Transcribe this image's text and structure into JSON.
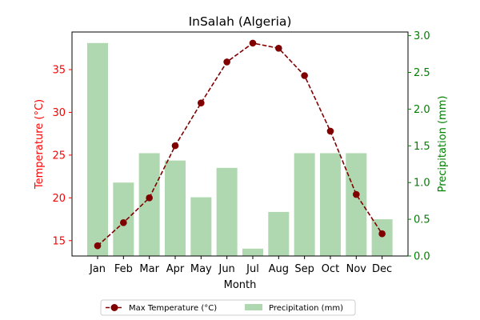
{
  "chart_data": {
    "type": "bar+line",
    "title": "InSalah (Algeria)",
    "xlabel": "Month",
    "ylabel_left": "Temperature (°C)",
    "ylabel_right": "Precipitation (mm)",
    "categories": [
      "Jan",
      "Feb",
      "Mar",
      "Apr",
      "May",
      "Jun",
      "Jul",
      "Aug",
      "Sep",
      "Oct",
      "Nov",
      "Dec"
    ],
    "left_axis": {
      "ylim": [
        13.2,
        39.4
      ],
      "ticks": [
        "15",
        "20",
        "25",
        "30",
        "35"
      ],
      "color": "#ff0000"
    },
    "right_axis": {
      "ylim": [
        0.0,
        3.05
      ],
      "ticks": [
        "0.0",
        "0.5",
        "1.0",
        "1.5",
        "2.0",
        "2.5",
        "3.0"
      ],
      "color": "#008000"
    },
    "series": [
      {
        "name": "Max Temperature (°C)",
        "type": "line",
        "axis": "left",
        "color": "#800000",
        "style": "dashed-with-circle-markers",
        "values": [
          14.4,
          17.1,
          20.0,
          26.1,
          31.1,
          35.9,
          38.1,
          37.5,
          34.3,
          27.8,
          20.4,
          15.8
        ]
      },
      {
        "name": "Precipitation (mm)",
        "type": "bar",
        "axis": "right",
        "color": "#b0d8b0",
        "values": [
          2.9,
          1.0,
          1.4,
          1.3,
          0.8,
          1.2,
          0.1,
          0.6,
          1.4,
          1.4,
          1.4,
          0.5
        ]
      }
    ],
    "legend": {
      "placement": "bottom-center",
      "columns": 2
    },
    "grid": false
  }
}
